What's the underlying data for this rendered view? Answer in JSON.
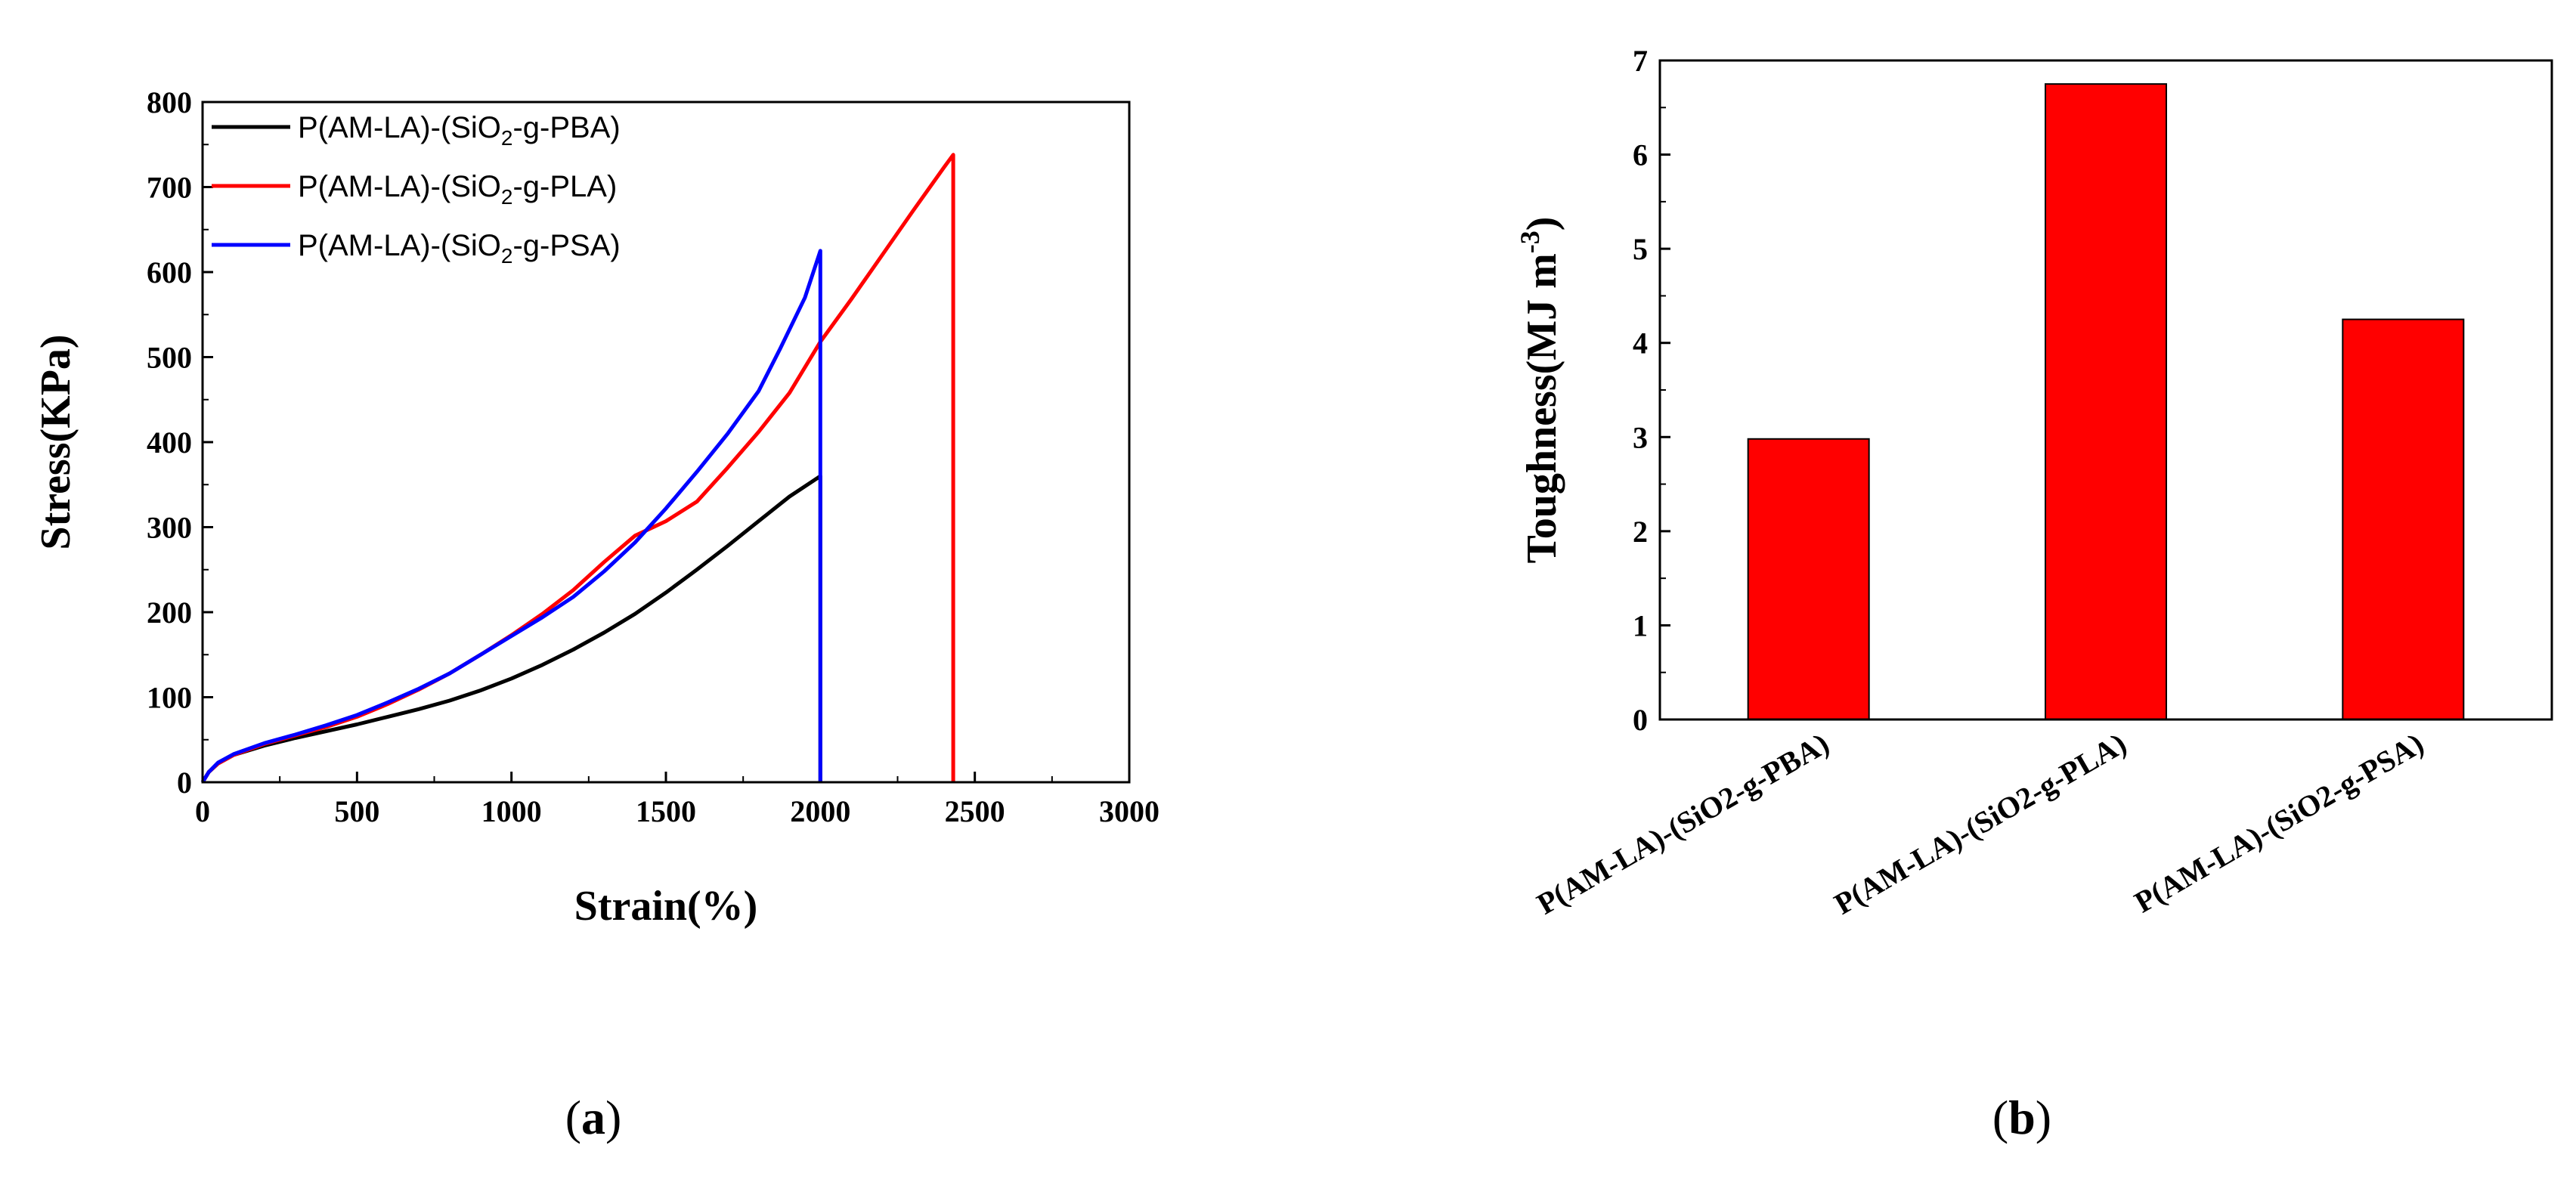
{
  "chart_data": [
    {
      "type": "line",
      "panel": "(a)",
      "panel_letter": "a",
      "xlabel": "Strain(%)",
      "ylabel": "Stress(KPa)",
      "xlim": [
        0,
        3000
      ],
      "ylim": [
        0,
        800
      ],
      "xticks": [
        0,
        500,
        1000,
        1500,
        2000,
        2500,
        3000
      ],
      "yticks": [
        0,
        100,
        200,
        300,
        400,
        500,
        600,
        700,
        800
      ],
      "legend_position": "top-left",
      "series": [
        {
          "name": "P(AM-LA)-(SiO2-g-PBA)",
          "legend_prefix": "P(AM-LA)-(SiO",
          "legend_sub": "2",
          "legend_suffix": "-g-PBA)",
          "color": "#000000",
          "x": [
            0,
            20,
            50,
            100,
            200,
            300,
            400,
            500,
            600,
            700,
            800,
            900,
            1000,
            1100,
            1200,
            1300,
            1400,
            1500,
            1600,
            1700,
            1800,
            1900,
            2000,
            2000
          ],
          "y": [
            0,
            12,
            22,
            32,
            43,
            52,
            60,
            68,
            77,
            86,
            96,
            108,
            122,
            138,
            156,
            176,
            198,
            223,
            250,
            278,
            307,
            336,
            360,
            0
          ]
        },
        {
          "name": "P(AM-LA)-(SiO2-g-PLA)",
          "legend_prefix": "P(AM-LA)-(SiO",
          "legend_sub": "2",
          "legend_suffix": "-g-PLA)",
          "color": "#ff0000",
          "x": [
            0,
            20,
            50,
            100,
            200,
            300,
            400,
            500,
            600,
            700,
            800,
            900,
            1000,
            1100,
            1200,
            1300,
            1400,
            1500,
            1600,
            1700,
            1800,
            1900,
            2000,
            2100,
            2200,
            2300,
            2400,
            2430,
            2430
          ],
          "y": [
            0,
            12,
            22,
            32,
            45,
            55,
            65,
            77,
            92,
            109,
            128,
            150,
            173,
            198,
            226,
            259,
            290,
            307,
            330,
            370,
            412,
            458,
            518,
            568,
            620,
            672,
            723,
            738,
            0
          ]
        },
        {
          "name": "P(AM-LA)-(SiO2-g-PSA)",
          "legend_prefix": "P(AM-LA)-(SiO",
          "legend_sub": "2",
          "legend_suffix": "-g-PSA)",
          "color": "#0000ff",
          "x": [
            0,
            20,
            50,
            100,
            200,
            300,
            400,
            500,
            600,
            700,
            800,
            900,
            1000,
            1100,
            1200,
            1300,
            1400,
            1500,
            1600,
            1700,
            1800,
            1870,
            1950,
            2000,
            2000
          ],
          "y": [
            0,
            12,
            23,
            33,
            46,
            56,
            67,
            79,
            94,
            110,
            128,
            150,
            172,
            194,
            218,
            248,
            282,
            322,
            365,
            410,
            460,
            510,
            570,
            625,
            0
          ]
        }
      ]
    },
    {
      "type": "bar",
      "panel": "(b)",
      "panel_letter": "b",
      "ylabel_prefix": "Toughness(MJ m",
      "ylabel_sup": "-3",
      "ylabel_suffix": ")",
      "ylim": [
        0,
        7
      ],
      "yticks": [
        0,
        1,
        2,
        3,
        4,
        5,
        6,
        7
      ],
      "categories": [
        "P(AM-LA)-(SiO2-g-PBA)",
        "P(AM-LA)-(SiO2-g-PLA)",
        "P(AM-LA)-(SiO2-g-PSA)"
      ],
      "values": [
        2.98,
        6.75,
        4.25
      ],
      "bar_color": "#ff0000"
    }
  ]
}
